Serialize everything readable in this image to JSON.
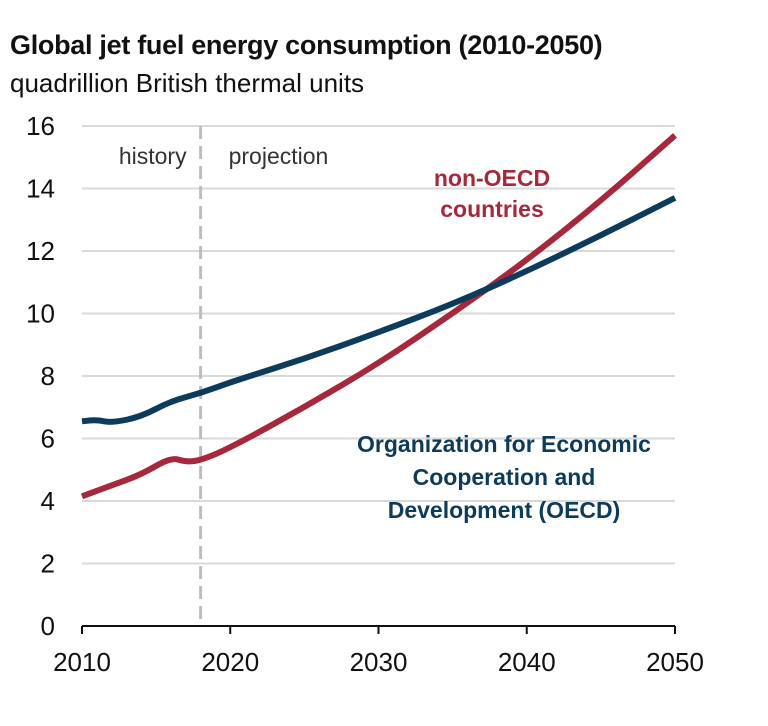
{
  "chart_data": {
    "type": "line",
    "title": "Global jet fuel energy consumption (2010-2050)",
    "subtitle": "quadrillion British thermal units",
    "xlabel": "",
    "ylabel": "quadrillion British thermal units",
    "xlim": [
      2010,
      2050
    ],
    "ylim": [
      0,
      16
    ],
    "x_ticks": [
      "2010",
      "2020",
      "2030",
      "2040",
      "2050"
    ],
    "y_ticks": [
      "0",
      "2",
      "4",
      "6",
      "8",
      "10",
      "12",
      "14",
      "16"
    ],
    "grid": "horizontal",
    "history_projection_divider": 2018,
    "region_labels": {
      "history": "history",
      "projection": "projection"
    },
    "series": [
      {
        "name": "non-OECD countries",
        "label_lines": [
          "non-OECD",
          "countries"
        ],
        "color": "#a6283a",
        "x": [
          2010,
          2012,
          2014,
          2016,
          2017,
          2018,
          2020,
          2025,
          2030,
          2035,
          2040,
          2045,
          2050
        ],
        "values": [
          4.15,
          4.5,
          4.85,
          5.4,
          5.25,
          5.3,
          5.7,
          7.0,
          8.4,
          10.0,
          11.7,
          13.6,
          15.7
        ]
      },
      {
        "name": "Organization for Economic Cooperation and Development (OECD)",
        "label_lines": [
          "Organization for Economic",
          "Cooperation and",
          "Development (OECD)"
        ],
        "color": "#0d3b5c",
        "x": [
          2010,
          2011,
          2012,
          2014,
          2016,
          2018,
          2020,
          2025,
          2030,
          2035,
          2040,
          2045,
          2050
        ],
        "values": [
          6.55,
          6.6,
          6.5,
          6.7,
          7.2,
          7.45,
          7.8,
          8.55,
          9.4,
          10.3,
          11.35,
          12.5,
          13.7
        ]
      }
    ]
  }
}
